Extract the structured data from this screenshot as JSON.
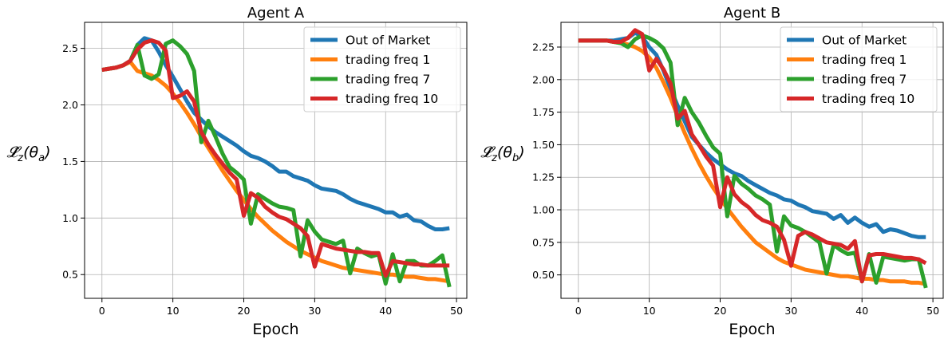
{
  "chart_data": [
    {
      "type": "line",
      "title": "Agent A",
      "xlabel": "Epoch",
      "ylabel": "𝓛̂",
      "ylabel_sub": "z",
      "ylabel_arg": "(θ",
      "ylabel_arg_sub": "a",
      "ylabel_close": ")",
      "xlim": [
        -2.45,
        51.45
      ],
      "ylim": [
        0.29,
        2.73
      ],
      "xticks": [
        0,
        10,
        20,
        30,
        40,
        50
      ],
      "xtick_labels": [
        "0",
        "10",
        "20",
        "30",
        "40",
        "50"
      ],
      "yticks": [
        0.5,
        1.0,
        1.5,
        2.0,
        2.5
      ],
      "ytick_labels": [
        "0.5",
        "1.0",
        "1.5",
        "2.0",
        "2.5"
      ],
      "grid": true,
      "legend_position": "top-right",
      "x": [
        0,
        1,
        2,
        3,
        4,
        5,
        6,
        7,
        8,
        9,
        10,
        11,
        12,
        13,
        14,
        15,
        16,
        17,
        18,
        19,
        20,
        21,
        22,
        23,
        24,
        25,
        26,
        27,
        28,
        29,
        30,
        31,
        32,
        33,
        34,
        35,
        36,
        37,
        38,
        39,
        40,
        41,
        42,
        43,
        44,
        45,
        46,
        47,
        48,
        49
      ],
      "series": [
        {
          "name": "Out of Market",
          "color": "#1f77b4",
          "values": [
            2.31,
            2.32,
            2.33,
            2.35,
            2.39,
            2.53,
            2.59,
            2.57,
            2.47,
            2.35,
            2.25,
            2.14,
            2.03,
            1.93,
            1.87,
            1.81,
            1.76,
            1.72,
            1.68,
            1.64,
            1.59,
            1.55,
            1.53,
            1.5,
            1.46,
            1.41,
            1.41,
            1.37,
            1.35,
            1.33,
            1.29,
            1.26,
            1.25,
            1.24,
            1.21,
            1.17,
            1.14,
            1.12,
            1.1,
            1.08,
            1.05,
            1.05,
            1.01,
            1.03,
            0.98,
            0.97,
            0.93,
            0.9,
            0.9,
            0.91
          ]
        },
        {
          "name": "trading freq 1",
          "color": "#ff7f0e",
          "values": [
            2.31,
            2.32,
            2.33,
            2.35,
            2.38,
            2.3,
            2.28,
            2.26,
            2.22,
            2.17,
            2.1,
            2.02,
            1.93,
            1.83,
            1.72,
            1.62,
            1.52,
            1.42,
            1.33,
            1.24,
            1.16,
            1.08,
            1.01,
            0.95,
            0.89,
            0.84,
            0.79,
            0.75,
            0.71,
            0.68,
            0.65,
            0.62,
            0.6,
            0.58,
            0.56,
            0.55,
            0.54,
            0.53,
            0.52,
            0.51,
            0.5,
            0.5,
            0.49,
            0.48,
            0.48,
            0.47,
            0.46,
            0.46,
            0.45,
            0.44
          ]
        },
        {
          "name": "trading freq 7",
          "color": "#2ca02c",
          "values": [
            2.31,
            2.32,
            2.33,
            2.35,
            2.39,
            2.53,
            2.26,
            2.23,
            2.27,
            2.54,
            2.57,
            2.52,
            2.45,
            2.3,
            1.67,
            1.86,
            1.72,
            1.57,
            1.45,
            1.4,
            1.34,
            0.95,
            1.21,
            1.17,
            1.13,
            1.1,
            1.09,
            1.07,
            0.66,
            0.98,
            0.88,
            0.81,
            0.79,
            0.77,
            0.8,
            0.51,
            0.73,
            0.69,
            0.66,
            0.68,
            0.42,
            0.68,
            0.44,
            0.62,
            0.62,
            0.58,
            0.58,
            0.62,
            0.67,
            0.39
          ]
        },
        {
          "name": "trading freq 10",
          "color": "#d62728",
          "values": [
            2.31,
            2.32,
            2.33,
            2.35,
            2.39,
            2.49,
            2.55,
            2.57,
            2.55,
            2.48,
            2.06,
            2.08,
            2.12,
            2.03,
            1.76,
            1.65,
            1.56,
            1.48,
            1.4,
            1.34,
            1.02,
            1.22,
            1.18,
            1.1,
            1.05,
            1.01,
            0.99,
            0.95,
            0.91,
            0.84,
            0.57,
            0.77,
            0.75,
            0.73,
            0.72,
            0.71,
            0.7,
            0.7,
            0.69,
            0.69,
            0.49,
            0.62,
            0.61,
            0.6,
            0.59,
            0.59,
            0.58,
            0.58,
            0.58,
            0.58
          ]
        }
      ]
    },
    {
      "type": "line",
      "title": "Agent B",
      "xlabel": "Epoch",
      "ylabel": "𝓛̂",
      "ylabel_sub": "z",
      "ylabel_arg": "(θ",
      "ylabel_arg_sub": "b",
      "ylabel_close": ")",
      "xlim": [
        -2.45,
        51.45
      ],
      "ylim": [
        0.32,
        2.44
      ],
      "xticks": [
        0,
        10,
        20,
        30,
        40,
        50
      ],
      "xtick_labels": [
        "0",
        "10",
        "20",
        "30",
        "40",
        "50"
      ],
      "yticks": [
        0.5,
        0.75,
        1.0,
        1.25,
        1.5,
        1.75,
        2.0,
        2.25
      ],
      "ytick_labels": [
        "0.50",
        "0.75",
        "1.00",
        "1.25",
        "1.50",
        "1.75",
        "2.00",
        "2.25"
      ],
      "grid": true,
      "legend_position": "top-right",
      "x": [
        0,
        1,
        2,
        3,
        4,
        5,
        6,
        7,
        8,
        9,
        10,
        11,
        12,
        13,
        14,
        15,
        16,
        17,
        18,
        19,
        20,
        21,
        22,
        23,
        24,
        25,
        26,
        27,
        28,
        29,
        30,
        31,
        32,
        33,
        34,
        35,
        36,
        37,
        38,
        39,
        40,
        41,
        42,
        43,
        44,
        45,
        46,
        47,
        48,
        49
      ],
      "series": [
        {
          "name": "Out of Market",
          "color": "#1f77b4",
          "values": [
            2.3,
            2.3,
            2.3,
            2.3,
            2.3,
            2.3,
            2.31,
            2.32,
            2.36,
            2.33,
            2.25,
            2.19,
            2.07,
            1.93,
            1.8,
            1.68,
            1.56,
            1.5,
            1.44,
            1.39,
            1.35,
            1.31,
            1.28,
            1.26,
            1.22,
            1.19,
            1.16,
            1.13,
            1.11,
            1.08,
            1.07,
            1.04,
            1.02,
            0.99,
            0.98,
            0.97,
            0.93,
            0.96,
            0.9,
            0.94,
            0.9,
            0.87,
            0.89,
            0.83,
            0.85,
            0.84,
            0.82,
            0.8,
            0.79,
            0.79
          ]
        },
        {
          "name": "trading freq 1",
          "color": "#ff7f0e",
          "values": [
            2.3,
            2.3,
            2.3,
            2.3,
            2.3,
            2.29,
            2.28,
            2.27,
            2.25,
            2.22,
            2.17,
            2.09,
            1.98,
            1.86,
            1.72,
            1.59,
            1.47,
            1.36,
            1.26,
            1.17,
            1.09,
            1.01,
            0.94,
            0.87,
            0.81,
            0.75,
            0.71,
            0.67,
            0.63,
            0.6,
            0.58,
            0.56,
            0.54,
            0.53,
            0.52,
            0.51,
            0.5,
            0.49,
            0.49,
            0.48,
            0.47,
            0.47,
            0.46,
            0.46,
            0.45,
            0.45,
            0.45,
            0.44,
            0.44,
            0.43
          ]
        },
        {
          "name": "trading freq 7",
          "color": "#2ca02c",
          "values": [
            2.3,
            2.3,
            2.3,
            2.3,
            2.3,
            2.29,
            2.28,
            2.25,
            2.31,
            2.34,
            2.32,
            2.29,
            2.24,
            2.13,
            1.65,
            1.86,
            1.75,
            1.67,
            1.57,
            1.48,
            1.43,
            0.95,
            1.26,
            1.2,
            1.16,
            1.11,
            1.08,
            1.04,
            0.68,
            0.95,
            0.88,
            0.86,
            0.83,
            0.79,
            0.75,
            0.51,
            0.73,
            0.69,
            0.66,
            0.67,
            0.45,
            0.66,
            0.44,
            0.64,
            0.63,
            0.62,
            0.61,
            0.62,
            0.62,
            0.4
          ]
        },
        {
          "name": "trading freq 10",
          "color": "#d62728",
          "values": [
            2.3,
            2.3,
            2.3,
            2.3,
            2.3,
            2.29,
            2.29,
            2.32,
            2.38,
            2.35,
            2.07,
            2.16,
            2.08,
            1.97,
            1.7,
            1.76,
            1.58,
            1.5,
            1.41,
            1.34,
            1.02,
            1.25,
            1.12,
            1.06,
            1.02,
            0.96,
            0.92,
            0.9,
            0.87,
            0.77,
            0.57,
            0.8,
            0.83,
            0.81,
            0.78,
            0.75,
            0.74,
            0.73,
            0.7,
            0.76,
            0.45,
            0.65,
            0.66,
            0.66,
            0.65,
            0.64,
            0.63,
            0.63,
            0.62,
            0.59
          ]
        }
      ]
    }
  ]
}
